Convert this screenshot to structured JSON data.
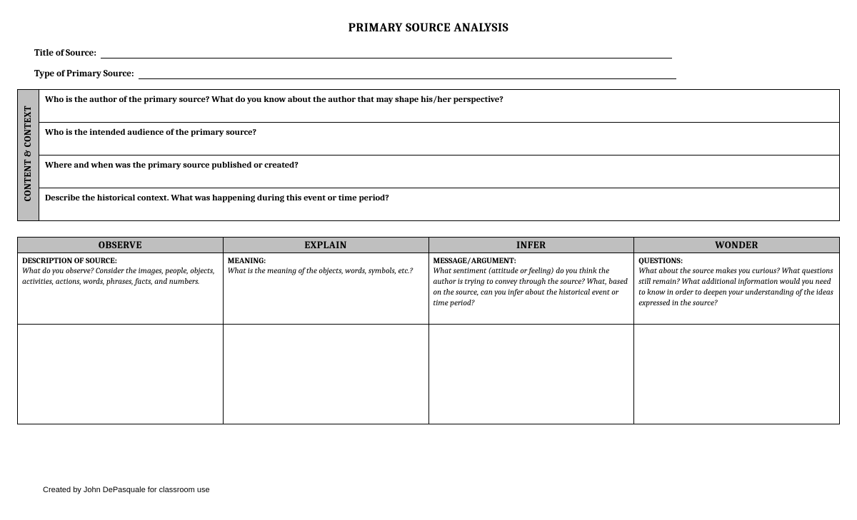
{
  "title": "PRIMARY SOURCE ANALYSIS",
  "fields": {
    "title_label": "Title of Source:",
    "type_label": "Type of Primary Source:"
  },
  "content_context": {
    "side_label": "CONTENT & CONTEXT",
    "q1": "Who is the author of the primary source? What do you know about the author that may shape his/her perspective?",
    "q2": "Who is the intended audience of the primary source?",
    "q3": "Where and when was the primary source published or created?",
    "q4": "Describe the historical context. What was happening during this event or time period?"
  },
  "oeiw": {
    "headers": {
      "observe": "OBSERVE",
      "explain": "EXPLAIN",
      "infer": "INFER",
      "wonder": "WONDER"
    },
    "observe": {
      "sub": "DESCRIPTION OF SOURCE:",
      "body": "What do you observe? Consider the images, people, objects, activities, actions, words, phrases, facts, and numbers."
    },
    "explain": {
      "sub": "MEANING:",
      "body": "What is the meaning of the objects, words, symbols, etc.?"
    },
    "infer": {
      "sub": "MESSAGE/ARGUMENT:",
      "body": "What sentiment (attitude or feeling) do you think the author is trying to convey through the source? What, based on the source, can you infer about the historical event or time period?"
    },
    "wonder": {
      "sub": "QUESTIONS:",
      "body": "What about the source makes you curious? What questions still remain? What additional information would you need to know in order to deepen your understanding of the ideas expressed in the source?"
    }
  },
  "footer": "Created by John DePasquale for classroom use"
}
